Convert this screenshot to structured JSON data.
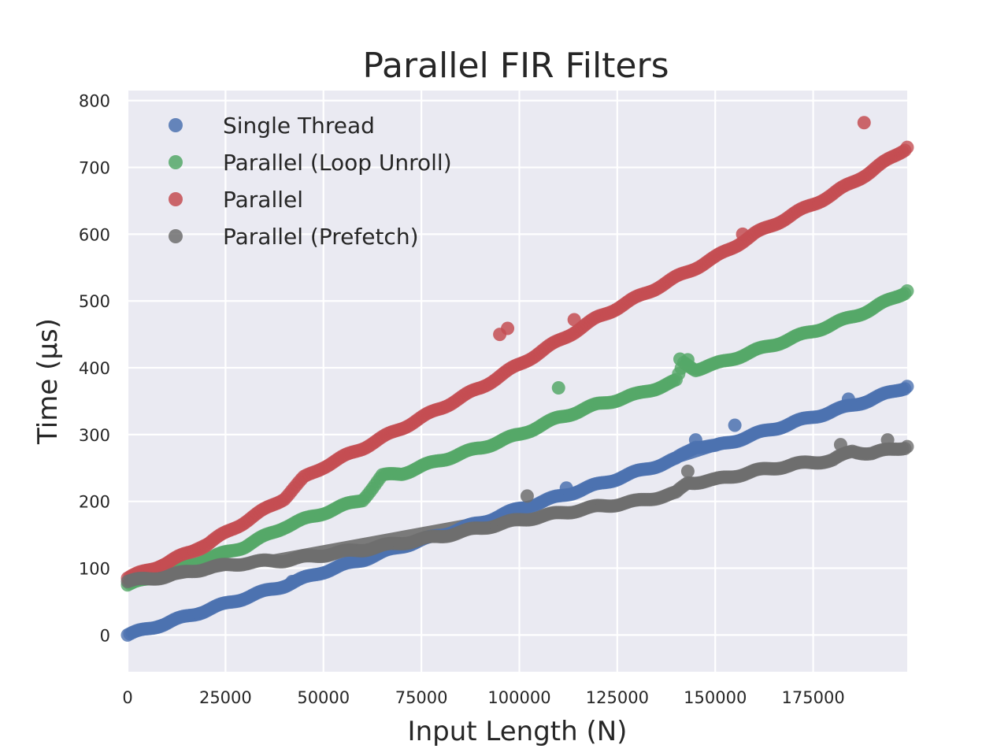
{
  "chart_data": {
    "type": "scatter",
    "title": "Parallel FIR Filters",
    "xlabel": "Input Length (N)",
    "ylabel": "Time (μs)",
    "xlim": [
      0,
      199000
    ],
    "ylim": [
      -55,
      815
    ],
    "x_ticks": [
      0,
      25000,
      50000,
      75000,
      100000,
      125000,
      150000,
      175000
    ],
    "y_ticks": [
      0,
      100,
      200,
      300,
      400,
      500,
      600,
      700,
      800
    ],
    "grid": true,
    "background": "#eaeaf2",
    "legend": "top-left",
    "series": [
      {
        "name": "Single Thread",
        "color": "#4c72b0",
        "points": [
          [
            0,
            0
          ],
          [
            10000,
            18
          ],
          [
            20000,
            37
          ],
          [
            30000,
            56
          ],
          [
            40000,
            74
          ],
          [
            50000,
            95
          ],
          [
            60000,
            113
          ],
          [
            70000,
            133
          ],
          [
            80000,
            150
          ],
          [
            90000,
            168
          ],
          [
            100000,
            189
          ],
          [
            110000,
            207
          ],
          [
            120000,
            225
          ],
          [
            130000,
            244
          ],
          [
            140000,
            263
          ],
          [
            145000,
            283
          ],
          [
            150000,
            282
          ],
          [
            160000,
            300
          ],
          [
            170000,
            318
          ],
          [
            180000,
            335
          ],
          [
            190000,
            353
          ],
          [
            199000,
            372
          ]
        ],
        "outliers": [
          [
            42000,
            80
          ],
          [
            112000,
            220
          ],
          [
            145000,
            292
          ],
          [
            155000,
            314
          ],
          [
            184000,
            353
          ]
        ]
      },
      {
        "name": "Parallel (Loop Unroll)",
        "color": "#55a868",
        "points": [
          [
            0,
            75
          ],
          [
            10000,
            92
          ],
          [
            20000,
            113
          ],
          [
            30000,
            133
          ],
          [
            40000,
            162
          ],
          [
            50000,
            183
          ],
          [
            60000,
            203
          ],
          [
            65000,
            238
          ],
          [
            70000,
            242
          ],
          [
            80000,
            262
          ],
          [
            90000,
            280
          ],
          [
            100000,
            300
          ],
          [
            110000,
            325
          ],
          [
            120000,
            345
          ],
          [
            130000,
            360
          ],
          [
            140000,
            380
          ],
          [
            142000,
            407
          ],
          [
            145000,
            398
          ],
          [
            150000,
            405
          ],
          [
            160000,
            425
          ],
          [
            170000,
            445
          ],
          [
            180000,
            465
          ],
          [
            190000,
            488
          ],
          [
            199000,
            515
          ]
        ],
        "outliers": [
          [
            110000,
            370
          ],
          [
            141000,
            413
          ],
          [
            143000,
            412
          ]
        ]
      },
      {
        "name": "Parallel",
        "color": "#c44e52",
        "points": [
          [
            0,
            85
          ],
          [
            10000,
            108
          ],
          [
            20000,
            135
          ],
          [
            30000,
            170
          ],
          [
            40000,
            205
          ],
          [
            45000,
            235
          ],
          [
            50000,
            252
          ],
          [
            60000,
            280
          ],
          [
            70000,
            310
          ],
          [
            80000,
            340
          ],
          [
            90000,
            370
          ],
          [
            100000,
            405
          ],
          [
            110000,
            440
          ],
          [
            120000,
            475
          ],
          [
            130000,
            505
          ],
          [
            140000,
            535
          ],
          [
            150000,
            565
          ],
          [
            160000,
            600
          ],
          [
            170000,
            630
          ],
          [
            180000,
            660
          ],
          [
            190000,
            695
          ],
          [
            199000,
            730
          ]
        ],
        "outliers": [
          [
            95000,
            450
          ],
          [
            97000,
            459
          ],
          [
            114000,
            472
          ],
          [
            157000,
            600
          ],
          [
            188000,
            767
          ]
        ]
      },
      {
        "name": "Parallel (Prefetch)",
        "color": "#6e6e6e",
        "points": [
          [
            0,
            80
          ],
          [
            10000,
            88
          ],
          [
            20000,
            100
          ],
          [
            30000,
            108
          ],
          [
            40000,
            112
          ],
          [
            50000,
            120
          ],
          [
            60000,
            128
          ],
          [
            70000,
            138
          ],
          [
            80000,
            148
          ],
          [
            90000,
            160
          ],
          [
            100000,
            172
          ],
          [
            110000,
            182
          ],
          [
            120000,
            192
          ],
          [
            130000,
            200
          ],
          [
            140000,
            212
          ],
          [
            143000,
            228
          ],
          [
            150000,
            232
          ],
          [
            160000,
            245
          ],
          [
            170000,
            255
          ],
          [
            180000,
            262
          ],
          [
            185000,
            275
          ],
          [
            190000,
            272
          ],
          [
            199000,
            282
          ]
        ],
        "outliers": [
          [
            102000,
            208
          ],
          [
            143000,
            245
          ],
          [
            182000,
            285
          ],
          [
            194000,
            292
          ]
        ]
      }
    ],
    "fit_lines": [
      {
        "color": "#4c72b0",
        "x": [
          0,
          199000
        ],
        "y": [
          2,
          372
        ]
      },
      {
        "color": "#55a868",
        "x": [
          0,
          24000
        ],
        "y": [
          75,
          123
        ]
      },
      {
        "color": "#c44e52",
        "x": [
          0,
          24000
        ],
        "y": [
          84,
          150
        ]
      },
      {
        "color": "#6e6e6e",
        "x": [
          0,
          98000
        ],
        "y": [
          75,
          180
        ]
      }
    ]
  }
}
